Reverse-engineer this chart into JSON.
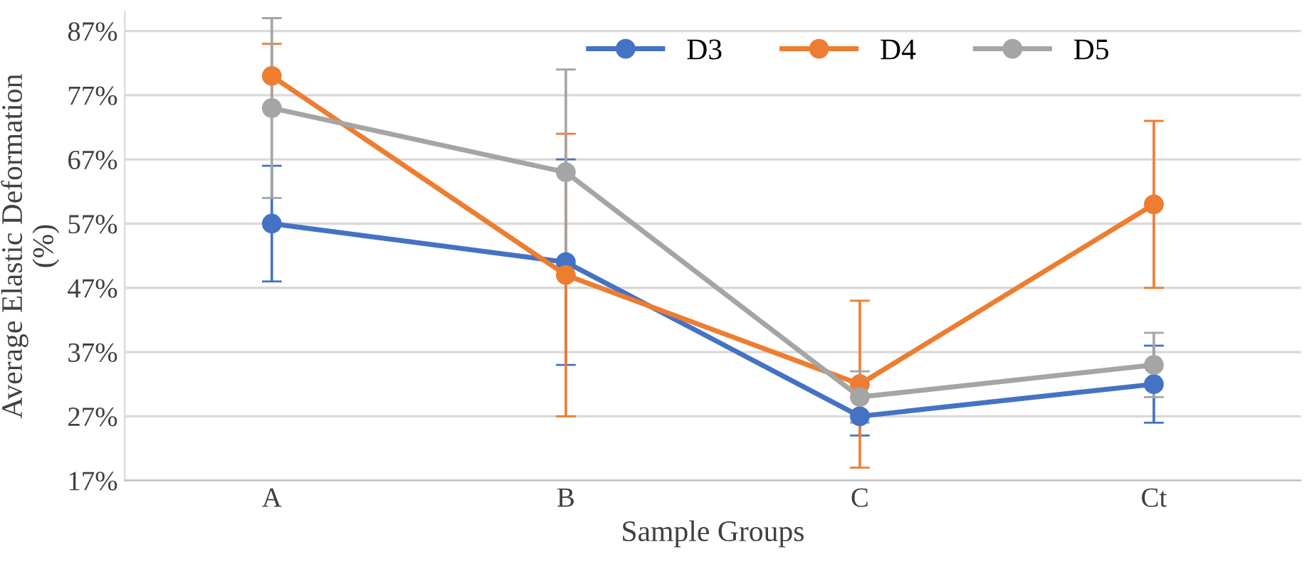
{
  "chart_data": {
    "type": "line",
    "xlabel": "Sample Groups",
    "ylabel": "Average Elastic Deformation\n(%)",
    "categories": [
      "A",
      "B",
      "C",
      "Ct"
    ],
    "series": [
      {
        "name": "D3",
        "color": "#4472c4",
        "values": [
          57,
          51,
          27,
          32
        ],
        "errors": [
          9,
          16,
          3,
          6
        ]
      },
      {
        "name": "D4",
        "color": "#ed7d31",
        "values": [
          80,
          49,
          32,
          60
        ],
        "errors": [
          5,
          22,
          13,
          13
        ]
      },
      {
        "name": "D5",
        "color": "#a5a5a5",
        "values": [
          75,
          65,
          30,
          35
        ],
        "errors": [
          14,
          16,
          4,
          5
        ]
      }
    ],
    "ylim": [
      17,
      90
    ],
    "yticks": [
      {
        "value": 17,
        "label": "17%"
      },
      {
        "value": 27,
        "label": "27%"
      },
      {
        "value": 37,
        "label": "37%"
      },
      {
        "value": 47,
        "label": "47%"
      },
      {
        "value": 57,
        "label": "57%"
      },
      {
        "value": 67,
        "label": "67%"
      },
      {
        "value": 77,
        "label": "77%"
      },
      {
        "value": 87,
        "label": "87%"
      }
    ],
    "grid": "y",
    "legend": "top right",
    "marker": "circle",
    "line_style": "solid"
  }
}
